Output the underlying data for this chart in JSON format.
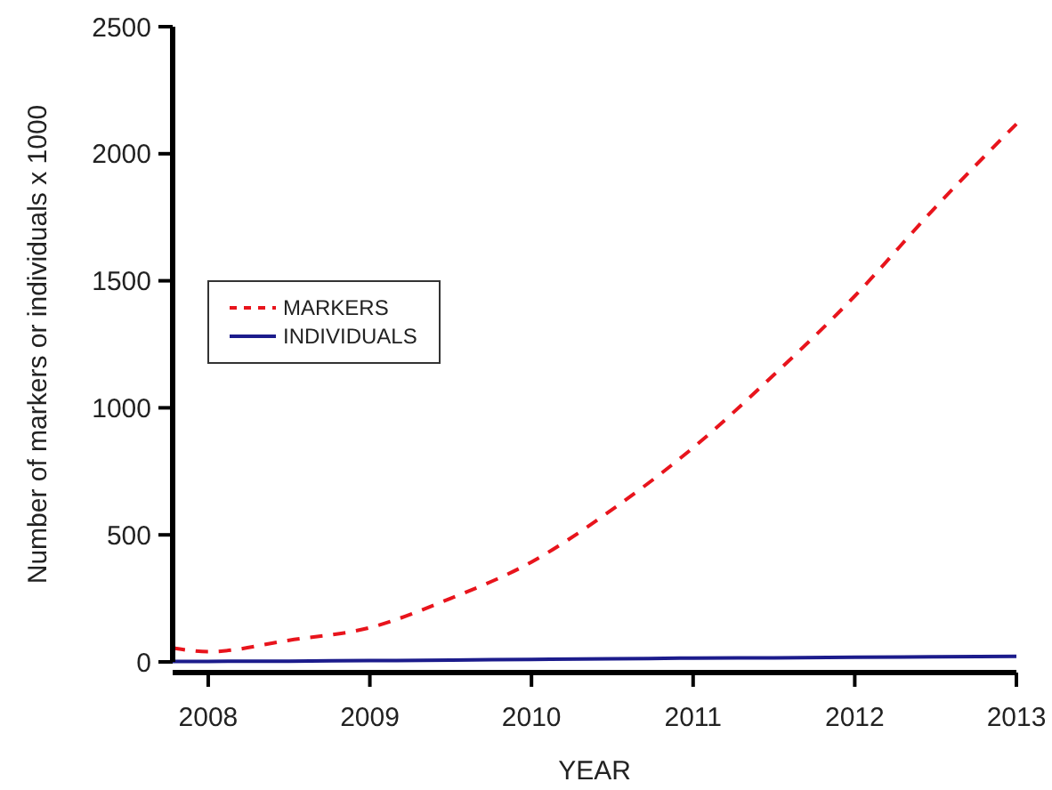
{
  "chart_data": {
    "type": "line",
    "xlabel": "YEAR",
    "ylabel": "Number of markers or individuals x 1000",
    "x": [
      2007.78,
      2008,
      2008.5,
      2009,
      2009.5,
      2010,
      2010.5,
      2011,
      2011.5,
      2012,
      2012.5,
      2013
    ],
    "series": [
      {
        "name": "MARKERS",
        "color": "#e8141c",
        "line_style": "dashed",
        "values": [
          55,
          40,
          85,
          135,
          250,
          393,
          600,
          843,
          1130,
          1440,
          1790,
          2117
        ]
      },
      {
        "name": "INDIVIDUALS",
        "color": "#1c1c8c",
        "line_style": "solid",
        "values": [
          2,
          2,
          3,
          5,
          7,
          10,
          12,
          15,
          16,
          18,
          20,
          22
        ]
      }
    ],
    "xlim": [
      2007.78,
      2013
    ],
    "xticks": [
      2008,
      2009,
      2010,
      2011,
      2012,
      2013
    ],
    "ylim": [
      0,
      2500
    ],
    "yticks": [
      0,
      500,
      1000,
      1500,
      2000,
      2500
    ],
    "grid": false,
    "legend": "top left",
    "marker": "none"
  }
}
